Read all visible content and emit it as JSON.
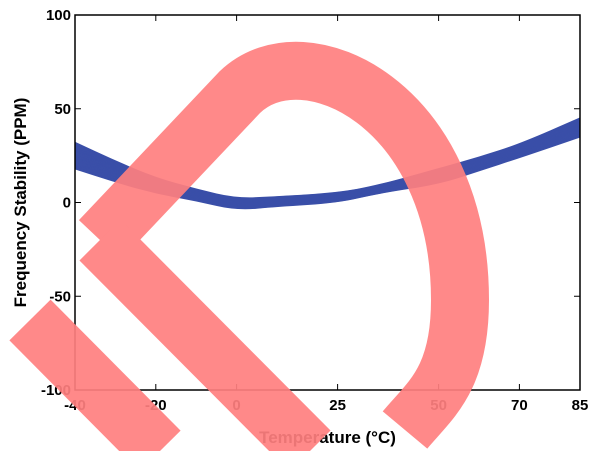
{
  "chart_data": {
    "type": "line",
    "title": "",
    "xlabel": "Temperature (°C)",
    "ylabel": "Frequency Stability (PPM)",
    "xticks": [
      -40,
      -20,
      0,
      25,
      50,
      70,
      85
    ],
    "yticks": [
      -100,
      -50,
      0,
      50,
      100
    ],
    "xlim": [
      -40,
      85
    ],
    "ylim": [
      -100,
      100
    ],
    "grid": false,
    "series_color": "#3a4fa8",
    "series_description": "band of many overlapping frequency-stability curves",
    "series": [
      {
        "x": [
          -40,
          -30,
          -20,
          -10,
          0,
          10,
          25,
          35,
          50,
          60,
          70,
          85
        ],
        "y": [
          32,
          22,
          13,
          7,
          2,
          3,
          5,
          9,
          18,
          24,
          31,
          45
        ]
      },
      {
        "x": [
          -40,
          -30,
          -20,
          -10,
          0,
          10,
          25,
          35,
          50,
          60,
          70,
          85
        ],
        "y": [
          25,
          17,
          9,
          4,
          -1,
          0.5,
          2.5,
          7,
          14,
          20,
          27,
          40
        ]
      },
      {
        "x": [
          -40,
          -30,
          -20,
          -10,
          0,
          10,
          25,
          35,
          50,
          60,
          70,
          85
        ],
        "y": [
          18,
          11,
          5,
          1,
          -4,
          -2,
          0,
          5,
          10,
          17,
          24,
          35
        ]
      }
    ],
    "watermark_color": "#ff7f7f"
  }
}
